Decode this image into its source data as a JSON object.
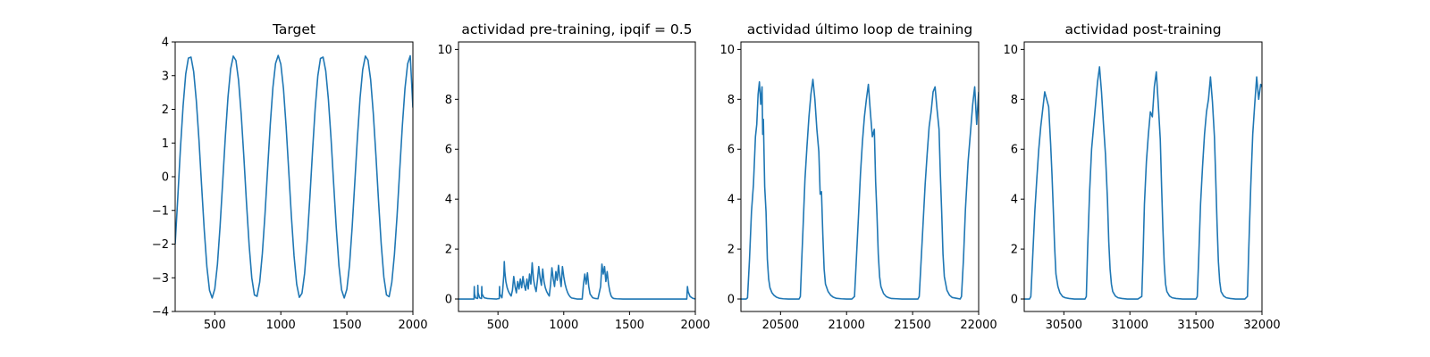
{
  "chart_data": [
    {
      "type": "line",
      "title": "Target",
      "xlim": [
        200,
        2000
      ],
      "ylim": [
        -4,
        4
      ],
      "xticks": [
        500,
        1000,
        1500,
        2000
      ],
      "yticks": [
        -4,
        -3,
        -2,
        -1,
        0,
        1,
        2,
        3,
        4
      ],
      "series": [
        {
          "color": "#1f77b4",
          "x": [
            200,
            220,
            240,
            260,
            280,
            300,
            320,
            340,
            360,
            380,
            400,
            420,
            440,
            460,
            480,
            500,
            520,
            540,
            560,
            580,
            600,
            620,
            640,
            660,
            680,
            700,
            720,
            740,
            760,
            780,
            800,
            820,
            840,
            860,
            880,
            900,
            920,
            940,
            960,
            980,
            1000,
            1020,
            1040,
            1060,
            1080,
            1100,
            1120,
            1140,
            1160,
            1180,
            1200,
            1220,
            1240,
            1260,
            1280,
            1300,
            1320,
            1340,
            1360,
            1380,
            1400,
            1420,
            1440,
            1460,
            1480,
            1500,
            1520,
            1540,
            1560,
            1580,
            1600,
            1620,
            1640,
            1660,
            1680,
            1700,
            1720,
            1740,
            1760,
            1780,
            1800,
            1820,
            1840,
            1860,
            1880,
            1900,
            1920,
            1940,
            1960,
            1980,
            2000
          ],
          "y": [
            -2.0,
            -0.6,
            0.85,
            2.1,
            3.05,
            3.52,
            3.55,
            3.12,
            2.26,
            1.1,
            -0.26,
            -1.57,
            -2.67,
            -3.37,
            -3.6,
            -3.33,
            -2.6,
            -1.47,
            -0.14,
            1.2,
            2.37,
            3.2,
            3.58,
            3.45,
            2.86,
            1.85,
            0.59,
            -0.78,
            -2.03,
            -3.0,
            -3.51,
            -3.55,
            -3.13,
            -2.28,
            -1.12,
            0.23,
            1.55,
            2.65,
            3.36,
            3.6,
            3.34,
            2.61,
            1.49,
            0.16,
            -1.18,
            -2.35,
            -3.19,
            -3.58,
            -3.46,
            -2.87,
            -1.87,
            -0.61,
            0.76,
            2.02,
            2.99,
            3.51,
            3.55,
            3.14,
            2.3,
            1.14,
            -0.21,
            -1.53,
            -2.64,
            -3.36,
            -3.6,
            -3.34,
            -2.62,
            -1.5,
            -0.17,
            1.17,
            2.34,
            3.18,
            3.58,
            3.46,
            2.88,
            1.88,
            0.63,
            -0.74,
            -2.0,
            -2.98,
            -3.51,
            -3.56,
            -3.14,
            -2.31,
            -1.16,
            0.19,
            1.51,
            2.62,
            3.35,
            3.59,
            2.05
          ]
        }
      ]
    },
    {
      "type": "line",
      "title": "actividad pre-training, ipqif = 0.5",
      "xlim": [
        200,
        2000
      ],
      "ylim": [
        -0.5,
        10.3
      ],
      "xticks": [
        500,
        1000,
        1500,
        2000
      ],
      "yticks": [
        0,
        2,
        4,
        6,
        8,
        10
      ],
      "series": [
        {
          "color": "#1f77b4",
          "x": [
            200,
            300,
            318,
            320,
            322,
            330,
            345,
            347,
            349,
            360,
            375,
            377,
            379,
            395,
            420,
            450,
            490,
            510,
            512,
            514,
            530,
            535,
            545,
            548,
            552,
            560,
            570,
            580,
            590,
            600,
            610,
            620,
            630,
            640,
            650,
            660,
            670,
            680,
            690,
            700,
            710,
            720,
            730,
            740,
            750,
            760,
            770,
            780,
            790,
            800,
            810,
            820,
            830,
            840,
            850,
            860,
            870,
            880,
            890,
            900,
            910,
            920,
            930,
            940,
            950,
            960,
            970,
            980,
            990,
            1000,
            1010,
            1020,
            1030,
            1040,
            1050,
            1060,
            1080,
            1100,
            1140,
            1150,
            1160,
            1170,
            1180,
            1190,
            1200,
            1220,
            1240,
            1260,
            1280,
            1290,
            1300,
            1310,
            1320,
            1330,
            1340,
            1350,
            1360,
            1370,
            1380,
            1400,
            1450,
            1500,
            1600,
            1700,
            1800,
            1900,
            1935,
            1940,
            1945,
            1960,
            1980,
            2000
          ],
          "y": [
            0,
            0,
            0,
            0.5,
            0.2,
            0.05,
            0.02,
            0.55,
            0.25,
            0.05,
            0.02,
            0.5,
            0.2,
            0.05,
            0.02,
            0.01,
            0,
            0.02,
            0.5,
            0.2,
            0.05,
            0.3,
            1.0,
            1.5,
            1.1,
            0.7,
            0.45,
            0.3,
            0.2,
            0.12,
            0.35,
            0.9,
            0.5,
            0.25,
            0.7,
            0.4,
            0.8,
            0.45,
            0.9,
            0.55,
            0.35,
            0.8,
            0.4,
            1.0,
            0.6,
            1.45,
            0.8,
            0.5,
            0.3,
            0.75,
            1.3,
            0.85,
            0.55,
            1.2,
            0.7,
            0.45,
            0.3,
            0.2,
            0.12,
            0.6,
            1.25,
            0.8,
            0.5,
            1.1,
            0.75,
            1.35,
            0.9,
            0.5,
            1.3,
            0.9,
            0.6,
            0.4,
            0.25,
            0.15,
            0.08,
            0.04,
            0.02,
            0,
            0,
            0.6,
            1.0,
            0.6,
            1.05,
            0.5,
            0.2,
            0.05,
            0.02,
            0.01,
            0.5,
            1.4,
            1.0,
            1.3,
            0.7,
            1.1,
            0.6,
            0.3,
            0.12,
            0.05,
            0.02,
            0.01,
            0,
            0,
            0,
            0,
            0,
            0,
            0,
            0.5,
            0.3,
            0.1,
            0.03,
            0
          ]
        }
      ]
    },
    {
      "type": "line",
      "title": "actividad último loop de training",
      "xlim": [
        20200,
        22000
      ],
      "ylim": [
        -0.5,
        10.3
      ],
      "xticks": [
        20500,
        21000,
        21500,
        22000
      ],
      "yticks": [
        0,
        2,
        4,
        6,
        8,
        10
      ],
      "series": [
        {
          "color": "#1f77b4",
          "x": [
            20200,
            20240,
            20250,
            20265,
            20280,
            20295,
            20310,
            20320,
            20330,
            20340,
            20350,
            20360,
            20365,
            20370,
            20380,
            20390,
            20400,
            20410,
            20420,
            20435,
            20450,
            20470,
            20490,
            20520,
            20560,
            20600,
            20640,
            20650,
            20660,
            20670,
            20685,
            20700,
            20715,
            20730,
            20745,
            20760,
            20775,
            20790,
            20800,
            20810,
            20820,
            20830,
            20840,
            20860,
            20880,
            20900,
            20920,
            20960,
            21000,
            21040,
            21060,
            21075,
            21090,
            21105,
            21120,
            21135,
            21150,
            21165,
            21180,
            21195,
            21210,
            21220,
            21230,
            21240,
            21250,
            21260,
            21280,
            21300,
            21320,
            21340,
            21380,
            21420,
            21460,
            21540,
            21550,
            21565,
            21580,
            21595,
            21610,
            21625,
            21640,
            21655,
            21670,
            21685,
            21700,
            21710,
            21720,
            21730,
            21740,
            21760,
            21780,
            21800,
            21840,
            21860,
            21870,
            21885,
            21900,
            21920,
            21940,
            21955,
            21970,
            21985,
            22000
          ],
          "y": [
            0,
            0,
            0.05,
            1.6,
            3.5,
            4.6,
            6.5,
            7.0,
            8.2,
            8.7,
            7.8,
            8.5,
            6.6,
            7.2,
            4.5,
            3.5,
            1.6,
            0.8,
            0.45,
            0.25,
            0.15,
            0.07,
            0.03,
            0.01,
            0,
            0,
            0,
            0.1,
            1.5,
            2.8,
            4.8,
            6.1,
            7.3,
            8.2,
            8.8,
            8.0,
            6.8,
            5.9,
            4.2,
            4.3,
            2.6,
            1.2,
            0.6,
            0.3,
            0.15,
            0.07,
            0.03,
            0.01,
            0,
            0,
            0.1,
            1.7,
            3.3,
            5.0,
            6.3,
            7.3,
            8.0,
            8.6,
            7.5,
            6.5,
            6.8,
            4.7,
            3.4,
            1.8,
            0.9,
            0.5,
            0.22,
            0.1,
            0.05,
            0.02,
            0.01,
            0,
            0,
            0,
            0.1,
            1.6,
            3.1,
            4.6,
            5.8,
            6.9,
            7.5,
            8.3,
            8.5,
            7.6,
            6.8,
            5.0,
            3.5,
            1.8,
            0.9,
            0.35,
            0.15,
            0.06,
            0.02,
            0,
            0.1,
            1.6,
            3.6,
            5.5,
            6.8,
            7.8,
            8.5,
            7.0,
            8.3
          ]
        }
      ]
    },
    {
      "type": "line",
      "title": "actividad post-training",
      "xlim": [
        30200,
        32000
      ],
      "ylim": [
        -0.5,
        10.3
      ],
      "xticks": [
        30500,
        31000,
        31500,
        32000
      ],
      "yticks": [
        0,
        2,
        4,
        6,
        8,
        10
      ],
      "series": [
        {
          "color": "#1f77b4",
          "x": [
            30200,
            30240,
            30250,
            30265,
            30280,
            30295,
            30310,
            30325,
            30340,
            30355,
            30370,
            30385,
            30400,
            30410,
            30420,
            30430,
            30440,
            30455,
            30470,
            30490,
            30510,
            30540,
            30580,
            30620,
            30660,
            30670,
            30680,
            30695,
            30710,
            30725,
            30740,
            30755,
            30770,
            30785,
            30800,
            30815,
            30830,
            30840,
            30850,
            30860,
            30870,
            30890,
            30910,
            30940,
            30980,
            31020,
            31060,
            31090,
            31100,
            31110,
            31125,
            31140,
            31155,
            31170,
            31185,
            31200,
            31215,
            31230,
            31240,
            31250,
            31260,
            31270,
            31280,
            31300,
            31320,
            31350,
            31400,
            31450,
            31500,
            31510,
            31520,
            31535,
            31550,
            31565,
            31580,
            31595,
            31610,
            31625,
            31640,
            31650,
            31660,
            31670,
            31680,
            31690,
            31710,
            31730,
            31760,
            31800,
            31840,
            31870,
            31890,
            31900,
            31915,
            31930,
            31945,
            31960,
            31975,
            31990,
            32000
          ],
          "y": [
            0,
            0,
            0.1,
            1.8,
            3.5,
            4.8,
            6.0,
            6.9,
            7.6,
            8.3,
            8.0,
            7.7,
            6.2,
            5.0,
            3.6,
            2.1,
            1.0,
            0.5,
            0.25,
            0.1,
            0.05,
            0.02,
            0,
            0,
            0,
            0.1,
            2.0,
            4.3,
            6.0,
            6.9,
            7.8,
            8.7,
            9.3,
            8.3,
            7.0,
            5.8,
            4.0,
            2.3,
            1.2,
            0.6,
            0.3,
            0.12,
            0.05,
            0.02,
            0,
            0,
            0,
            0.1,
            1.8,
            3.8,
            5.5,
            6.6,
            7.5,
            7.3,
            8.5,
            9.1,
            7.8,
            6.4,
            4.5,
            2.8,
            1.4,
            0.6,
            0.3,
            0.12,
            0.05,
            0.02,
            0,
            0,
            0,
            0.1,
            1.5,
            3.8,
            5.3,
            6.6,
            7.5,
            8.0,
            8.9,
            7.9,
            6.5,
            4.8,
            3.0,
            1.5,
            0.7,
            0.3,
            0.12,
            0.05,
            0.02,
            0,
            0,
            0,
            0.1,
            2.0,
            4.5,
            6.6,
            7.8,
            8.9,
            8.0,
            8.6,
            8.5
          ]
        }
      ]
    }
  ]
}
